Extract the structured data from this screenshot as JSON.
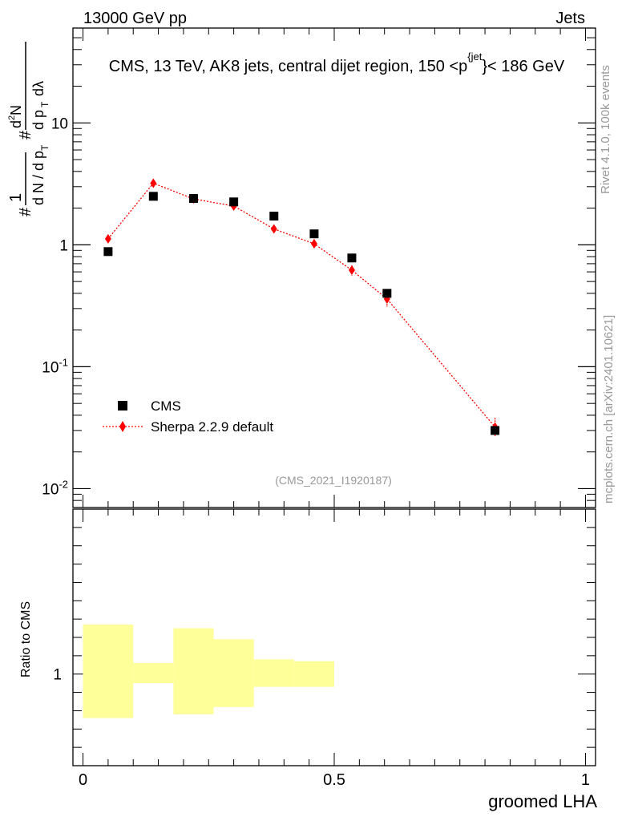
{
  "header": {
    "energy_label": "13000 GeV pp",
    "category_label": "Jets"
  },
  "side_labels": {
    "rivet": "Rivet 4.1.0,  100k events",
    "mcplots": "mcplots.cern.ch [arXiv:2401.10621]"
  },
  "colors": {
    "data": "#000000",
    "mc": "#ff0000",
    "band": "#ffff99",
    "watermark": "#999999"
  },
  "chart_data": [
    {
      "type": "scatter",
      "title": "CMS, 13 TeV, AK8 jets, central dijet region, 150 <p_T^{jet}< 186 GeV",
      "ylabel": "1/(dN/dp_T) d²N/(dp_T dλ)",
      "yscale": "log",
      "ylim": [
        0.007,
        60
      ],
      "xlim": [
        -0.02,
        1.02
      ],
      "y_ticks": [
        "10",
        "1",
        "10^-1",
        "10^-2"
      ],
      "watermark": "(CMS_2021_I1920187)",
      "legend_position": "middle-left",
      "series": [
        {
          "name": "CMS",
          "marker": "square",
          "x": [
            0.05,
            0.14,
            0.22,
            0.3,
            0.38,
            0.46,
            0.535,
            0.605,
            0.82
          ],
          "y": [
            0.88,
            2.5,
            2.4,
            2.25,
            1.72,
            1.23,
            0.78,
            0.4,
            0.03
          ]
        },
        {
          "name": "Sherpa 2.2.9 default",
          "marker": "diamond",
          "line": "dotted",
          "x": [
            0.05,
            0.14,
            0.22,
            0.3,
            0.38,
            0.46,
            0.535,
            0.605,
            0.82
          ],
          "y": [
            1.12,
            3.2,
            2.38,
            2.08,
            1.35,
            1.02,
            0.62,
            0.36,
            0.032
          ],
          "err_low": [
            1.05,
            3.05,
            2.28,
            1.98,
            1.29,
            0.93,
            0.56,
            0.31,
            0.027
          ],
          "err_high": [
            1.2,
            3.35,
            2.48,
            2.18,
            1.41,
            1.11,
            0.68,
            0.41,
            0.038
          ]
        }
      ]
    },
    {
      "type": "area",
      "ylabel": "Ratio to CMS",
      "xlabel": "groomed LHA",
      "xlim": [
        -0.02,
        1.02
      ],
      "x_ticks": [
        "0",
        "0.5",
        "1"
      ],
      "y_ticks": [
        "1"
      ],
      "ylim": [
        0.5,
        1.9
      ],
      "band": [
        {
          "x0": 0.0,
          "x1": 0.1,
          "lo": 0.76,
          "hi": 1.27
        },
        {
          "x0": 0.1,
          "x1": 0.18,
          "lo": 0.95,
          "hi": 1.06
        },
        {
          "x0": 0.18,
          "x1": 0.26,
          "lo": 0.78,
          "hi": 1.25
        },
        {
          "x0": 0.26,
          "x1": 0.34,
          "lo": 0.82,
          "hi": 1.19
        },
        {
          "x0": 0.34,
          "x1": 0.42,
          "lo": 0.93,
          "hi": 1.08
        },
        {
          "x0": 0.42,
          "x1": 0.5,
          "lo": 0.93,
          "hi": 1.07
        }
      ]
    }
  ]
}
